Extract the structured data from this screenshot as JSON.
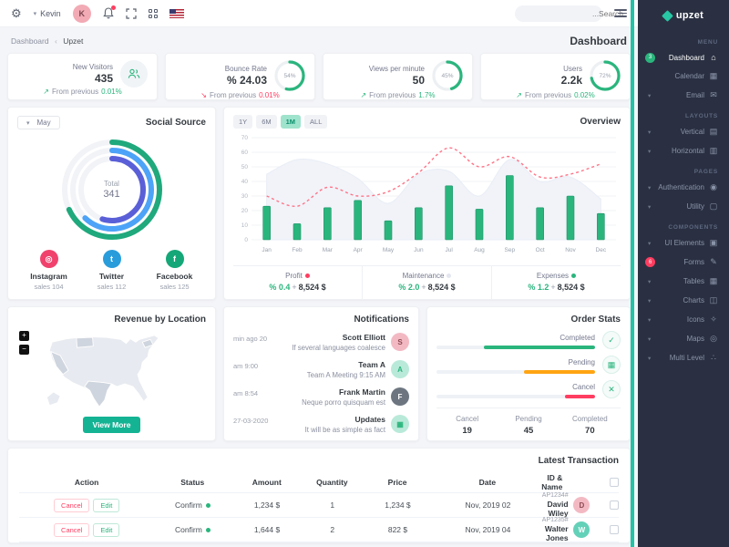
{
  "topbar": {
    "user_name": "Kevin",
    "user_initial": "K",
    "search_placeholder": "...Search"
  },
  "breadcrumb": {
    "first": "Dashboard",
    "separator": "‹",
    "second": "Upzet",
    "page_title": "Dashboard"
  },
  "stats": [
    {
      "label": "New Visitors",
      "value": "435",
      "arrow": "↗",
      "dir": "up",
      "prefix": "From previous",
      "pct": "0.01%"
    },
    {
      "label": "Bounce Rate",
      "value": "% 24.03",
      "arrow": "↘",
      "dir": "down",
      "prefix": "From previous",
      "pct": "0.01%",
      "radial": "54%",
      "dash": "54 100",
      "ring_color": "#2ab57d"
    },
    {
      "label": "Views per minute",
      "value": "50",
      "arrow": "↗",
      "dir": "up",
      "prefix": "From previous",
      "pct": "1.7%",
      "radial": "45%",
      "dash": "45 100",
      "ring_color": "#2ab57d"
    },
    {
      "label": "Users",
      "value": "2.2k",
      "arrow": "↗",
      "dir": "up",
      "prefix": "From previous",
      "pct": "0.02%",
      "radial": "72%",
      "dash": "72 100",
      "ring_color": "#2ab57d"
    }
  ],
  "social": {
    "title": "Social Source",
    "period": "May",
    "total_label": "Total",
    "total": "341",
    "rings": [
      {
        "color": "#1fa97c",
        "pct": 68
      },
      {
        "color": "#4da3f7",
        "pct": 62
      },
      {
        "color": "#5a5fd8",
        "pct": 55
      }
    ],
    "items": [
      {
        "name": "Instagram",
        "sales": "sales 104",
        "color": "#f0426d",
        "glyph": "◎"
      },
      {
        "name": "Twitter",
        "sales": "sales 112",
        "color": "#299cdb",
        "glyph": "t"
      },
      {
        "name": "Facebook",
        "sales": "sales 125",
        "color": "#15a777",
        "glyph": "f"
      }
    ]
  },
  "overview": {
    "title": "Overview",
    "ranges": [
      "1Y",
      "6M",
      "1M",
      "ALL"
    ],
    "active_range": "1M",
    "sep": "+",
    "footer": [
      {
        "label": "Profit",
        "dot": "#ff3d60",
        "pct": "% 0.4",
        "amount": "8,524 $"
      },
      {
        "label": "Maintenance",
        "dot": "#e3e6ef",
        "pct": "% 2.0",
        "amount": "8,524 $"
      },
      {
        "label": "Expenses",
        "dot": "#2ab57d",
        "pct": "% 1.2",
        "amount": "8,524 $"
      }
    ],
    "chart_data": {
      "type": "mixed",
      "categories": [
        "Jan",
        "Feb",
        "Mar",
        "Apr",
        "May",
        "Jun",
        "Jul",
        "Aug",
        "Sep",
        "Oct",
        "Nov",
        "Dec"
      ],
      "series": [
        {
          "name": "bars",
          "type": "bar",
          "color": "#2ab57d",
          "values": [
            23,
            11,
            22,
            27,
            13,
            22,
            37,
            21,
            44,
            22,
            30,
            18
          ]
        },
        {
          "name": "line",
          "type": "line-dashed",
          "color": "#ff7588",
          "values": [
            30,
            23,
            36,
            30,
            33,
            46,
            63,
            50,
            57,
            43,
            45,
            52
          ]
        },
        {
          "name": "area",
          "type": "area",
          "color": "#f1f3f9",
          "values": [
            45,
            55,
            52,
            42,
            25,
            45,
            47,
            30,
            55,
            40,
            43,
            28
          ]
        }
      ],
      "ylim": [
        0,
        70
      ],
      "yticks": [
        0,
        10,
        20,
        30,
        40,
        50,
        60,
        70
      ],
      "grid": true
    }
  },
  "map_card": {
    "title": "Revenue by Location",
    "zoom_in": "+",
    "zoom_out": "−",
    "view_more": "View More"
  },
  "notifications": {
    "title": "Notifications",
    "items": [
      {
        "time": "min ago 20",
        "name": "Scott Elliott",
        "desc": "If several languages coalesce",
        "avatar": "S",
        "color": "#f3b9c3",
        "text_color": "#8d4a52"
      },
      {
        "time": "am 9:00",
        "name": "Team A",
        "desc": "Team A Meeting 9:15 AM",
        "avatar": "A",
        "color": "#b9ead9",
        "text_color": "#2ab57d"
      },
      {
        "time": "am 8:54",
        "name": "Frank Martin",
        "desc": "Neque porro quisquam est",
        "avatar": "F",
        "color": "#6d7680",
        "text_color": "#ffffff"
      },
      {
        "time": "27-03-2020",
        "name": "Updates",
        "desc": "It will be as simple as fact",
        "avatar": "▦",
        "color": "#b9ead9",
        "text_color": "#2ab57d"
      }
    ]
  },
  "order_stats": {
    "title": "Order Stats",
    "rows": [
      {
        "label": "Completed",
        "pct": 70,
        "color": "#2ab57d",
        "icon": "✓"
      },
      {
        "label": "Pending",
        "pct": 45,
        "color": "#ffa412",
        "icon": "▦"
      },
      {
        "label": "Cancel",
        "pct": 19,
        "color": "#ff3d60",
        "icon": "✕"
      }
    ],
    "summary": [
      {
        "label": "Cancel",
        "value": "19"
      },
      {
        "label": "Pending",
        "value": "45"
      },
      {
        "label": "Completed",
        "value": "70"
      }
    ]
  },
  "transactions": {
    "title": "Latest Transaction",
    "headers": [
      "Action",
      "Status",
      "Amount",
      "Quantity",
      "Price",
      "Date",
      "ID & Name"
    ],
    "rows": [
      {
        "cancel": "Cancel",
        "edit": "Edit",
        "status": "Confirm",
        "amount": "1,234 $",
        "qty": "1",
        "price": "1,234 $",
        "date": "Nov, 2019 02",
        "id": "AP1234#",
        "name": "David Wiley",
        "avatar": "D",
        "av_color": "#f3b9c3",
        "av_text": "#8d4a52"
      },
      {
        "cancel": "Cancel",
        "edit": "Edit",
        "status": "Confirm",
        "amount": "1,644 $",
        "qty": "2",
        "price": "822 $",
        "date": "Nov, 2019 04",
        "id": "AP1235#",
        "name": "Walter Jones",
        "avatar": "W",
        "av_color": "#63d1b8",
        "av_text": "#ffffff"
      }
    ]
  },
  "sidebar": {
    "brand": "upzet",
    "accent": "#27c6a4",
    "sections": [
      {
        "label": "MENU",
        "items": [
          {
            "label": "Dashboard",
            "icon": "home",
            "active": true,
            "badge": "3",
            "badge_color": "#2ab57d"
          },
          {
            "label": "Calendar",
            "icon": "calendar"
          },
          {
            "label": "Email",
            "icon": "mail",
            "chevron": true
          }
        ]
      },
      {
        "label": "LAYOUTS",
        "items": [
          {
            "label": "Vertical",
            "icon": "vertical",
            "chevron": true
          },
          {
            "label": "Horizontal",
            "icon": "horizontal",
            "chevron": true
          }
        ]
      },
      {
        "label": "PAGES",
        "items": [
          {
            "label": "Authentication",
            "icon": "user",
            "chevron": true
          },
          {
            "label": "Utility",
            "icon": "file",
            "chevron": true
          }
        ]
      },
      {
        "label": "COMPONENTS",
        "items": [
          {
            "label": "UI Elements",
            "icon": "box",
            "chevron": true
          },
          {
            "label": "Forms",
            "icon": "pen",
            "badge": "6",
            "badge_color": "#ff3d60"
          },
          {
            "label": "Tables",
            "icon": "table",
            "chevron": true
          },
          {
            "label": "Charts",
            "icon": "chart",
            "chevron": true
          },
          {
            "label": "Icons",
            "icon": "compass",
            "chevron": true
          },
          {
            "label": "Maps",
            "icon": "pin",
            "chevron": true
          },
          {
            "label": "Multi Level",
            "icon": "share",
            "chevron": true
          }
        ]
      }
    ]
  }
}
